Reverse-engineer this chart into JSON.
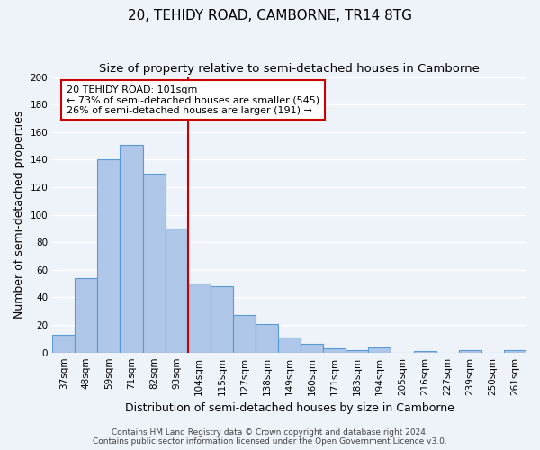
{
  "title": "20, TEHIDY ROAD, CAMBORNE, TR14 8TG",
  "subtitle": "Size of property relative to semi-detached houses in Camborne",
  "xlabel": "Distribution of semi-detached houses by size in Camborne",
  "ylabel": "Number of semi-detached properties",
  "categories": [
    "37sqm",
    "48sqm",
    "59sqm",
    "71sqm",
    "82sqm",
    "93sqm",
    "104sqm",
    "115sqm",
    "127sqm",
    "138sqm",
    "149sqm",
    "160sqm",
    "171sqm",
    "183sqm",
    "194sqm",
    "205sqm",
    "216sqm",
    "227sqm",
    "239sqm",
    "250sqm",
    "261sqm"
  ],
  "values": [
    13,
    54,
    140,
    151,
    130,
    90,
    50,
    48,
    27,
    21,
    11,
    6,
    3,
    2,
    4,
    0,
    1,
    0,
    2,
    0,
    2
  ],
  "bar_color": "#aec6e8",
  "bar_edge_color": "#5b9bd5",
  "ylim": [
    0,
    200
  ],
  "yticks": [
    0,
    20,
    40,
    60,
    80,
    100,
    120,
    140,
    160,
    180,
    200
  ],
  "red_line_category_index": 6,
  "annotation_line1": "20 TEHIDY ROAD: 101sqm",
  "annotation_line2": "← 73% of semi-detached houses are smaller (545)",
  "annotation_line3": "26% of semi-detached houses are larger (191) →",
  "annotation_box_color": "#ffffff",
  "annotation_box_edge_color": "#cc0000",
  "red_line_color": "#cc0000",
  "footer1": "Contains HM Land Registry data © Crown copyright and database right 2024.",
  "footer2": "Contains public sector information licensed under the Open Government Licence v3.0.",
  "background_color": "#eef2f9",
  "grid_color": "#ffffff",
  "title_fontsize": 11,
  "subtitle_fontsize": 9.5,
  "axis_label_fontsize": 9,
  "tick_fontsize": 7.5,
  "footer_fontsize": 6.5
}
